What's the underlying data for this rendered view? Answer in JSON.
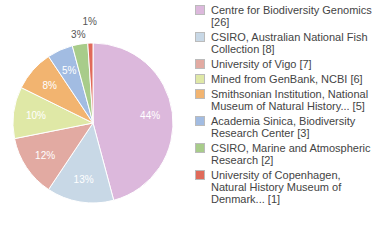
{
  "chart_data": {
    "type": "pie",
    "categories": [
      "Centre for Biodiversity Genomics [26]",
      "CSIRO, Australian National Fish Collection [8]",
      "University of Vigo [7]",
      "Mined from GenBank, NCBI [6]",
      "Smithsonian Institution, National Museum of Natural History... [5]",
      "Academia Sinica, Biodiversity Research Center [3]",
      "CSIRO, Marine and Atmospheric Research [2]",
      "University of Copenhagen, Natural History Museum of Denmark... [1]"
    ],
    "values": [
      44,
      13,
      12,
      10,
      8,
      5,
      3,
      1
    ],
    "value_labels": [
      "44%",
      "13%",
      "12%",
      "10%",
      "8%",
      "5%",
      "3%",
      "1%"
    ],
    "colors": [
      "#dcb8dc",
      "#c8d8e6",
      "#e2aaa2",
      "#dfe8a6",
      "#f2b470",
      "#a2bce2",
      "#a8cc8a",
      "#e06a5a"
    ],
    "data_labels": true,
    "legend": "right"
  }
}
